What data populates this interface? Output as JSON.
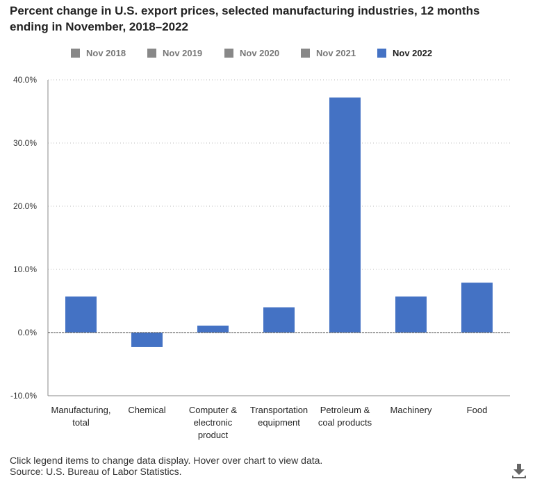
{
  "title": "Percent change in U.S. export prices, selected manufacturing industries, 12 months ending in November, 2018–2022",
  "legend": [
    {
      "label": "Nov 2018",
      "color": "#888888",
      "active": false
    },
    {
      "label": "Nov 2019",
      "color": "#888888",
      "active": false
    },
    {
      "label": "Nov 2020",
      "color": "#888888",
      "active": false
    },
    {
      "label": "Nov 2021",
      "color": "#888888",
      "active": false
    },
    {
      "label": "Nov 2022",
      "color": "#4472C4",
      "active": true
    }
  ],
  "chart_data": {
    "type": "bar",
    "title": "Percent change in U.S. export prices, selected manufacturing industries, 12 months ending in November, 2018–2022",
    "categories": [
      [
        "Manufacturing,",
        "total"
      ],
      [
        "Chemical"
      ],
      [
        "Computer &",
        "electronic",
        "product"
      ],
      [
        "Transportation",
        "equipment"
      ],
      [
        "Petroleum &",
        "coal products"
      ],
      [
        "Machinery"
      ],
      [
        "Food"
      ]
    ],
    "series": [
      {
        "name": "Nov 2022",
        "color": "#4472C4",
        "values": [
          5.7,
          -2.3,
          1.1,
          4.0,
          37.2,
          5.7,
          7.9
        ]
      }
    ],
    "ylim": [
      -10,
      40
    ],
    "yticks": [
      -10,
      0,
      10,
      20,
      30,
      40
    ],
    "ytick_labels": [
      "-10.0%",
      "0.0%",
      "10.0%",
      "20.0%",
      "30.0%",
      "40.0%"
    ],
    "xlabel": "",
    "ylabel": "",
    "grid": true
  },
  "footer": {
    "note": "Click legend items to change data display. Hover over chart to view data.",
    "source": "Source: U.S. Bureau of Labor Statistics."
  },
  "icons": {
    "download": "download-icon"
  }
}
